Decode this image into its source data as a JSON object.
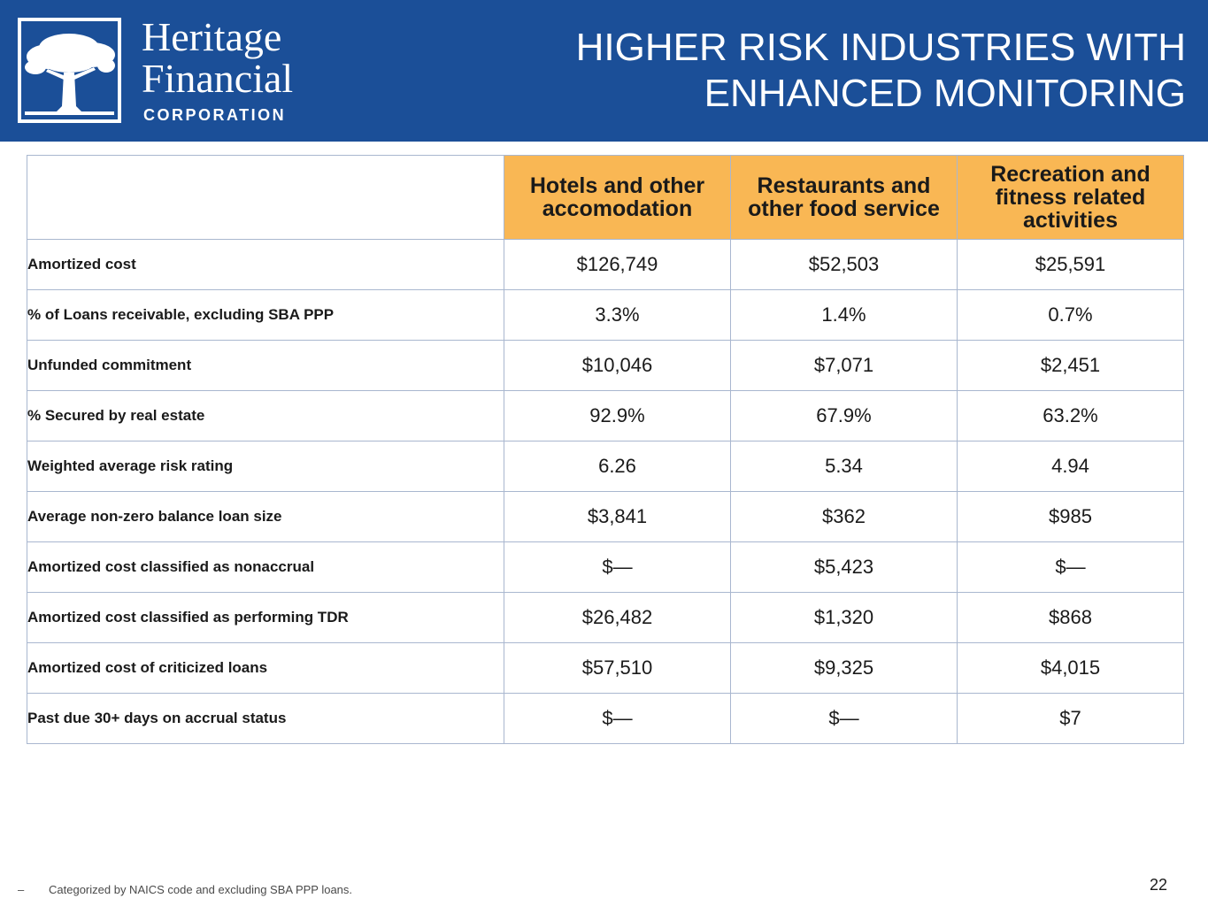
{
  "header": {
    "brand_line1": "Heritage",
    "brand_line2": "Financial",
    "brand_sub": "CORPORATION",
    "title_line1": "HIGHER RISK INDUSTRIES WITH",
    "title_line2": "ENHANCED MONITORING",
    "colors": {
      "header_bg": "#1b4f98",
      "column_header_bg": "#f9b754",
      "text_white": "#ffffff"
    }
  },
  "table": {
    "columns": [
      "Hotels and other accomodation",
      "Restaurants and other food service",
      "Recreation and fitness related activities"
    ],
    "rows": [
      {
        "label": "Amortized cost",
        "values": [
          "$126,749",
          "$52,503",
          "$25,591"
        ]
      },
      {
        "label": "% of Loans receivable, excluding SBA PPP",
        "values": [
          "3.3%",
          "1.4%",
          "0.7%"
        ]
      },
      {
        "label": "Unfunded commitment",
        "values": [
          "$10,046",
          "$7,071",
          "$2,451"
        ]
      },
      {
        "label": "% Secured by real estate",
        "values": [
          "92.9%",
          "67.9%",
          "63.2%"
        ]
      },
      {
        "label": "Weighted average risk rating",
        "values": [
          "6.26",
          "5.34",
          "4.94"
        ]
      },
      {
        "label": "Average non-zero balance loan size",
        "values": [
          "$3,841",
          "$362",
          "$985"
        ]
      },
      {
        "label": "Amortized cost classified as nonaccrual",
        "values": [
          "$—",
          "$5,423",
          "$—"
        ]
      },
      {
        "label": "Amortized cost classified as performing TDR",
        "values": [
          "$26,482",
          "$1,320",
          "$868"
        ]
      },
      {
        "label": "Amortized cost of criticized loans",
        "values": [
          "$57,510",
          "$9,325",
          "$4,015"
        ]
      },
      {
        "label": "Past due 30+ days on accrual status",
        "values": [
          "$—",
          "$—",
          "$7"
        ]
      }
    ]
  },
  "footer": {
    "bullet": "–",
    "note": "Categorized by NAICS code and excluding SBA PPP loans.",
    "page_number": "22"
  }
}
